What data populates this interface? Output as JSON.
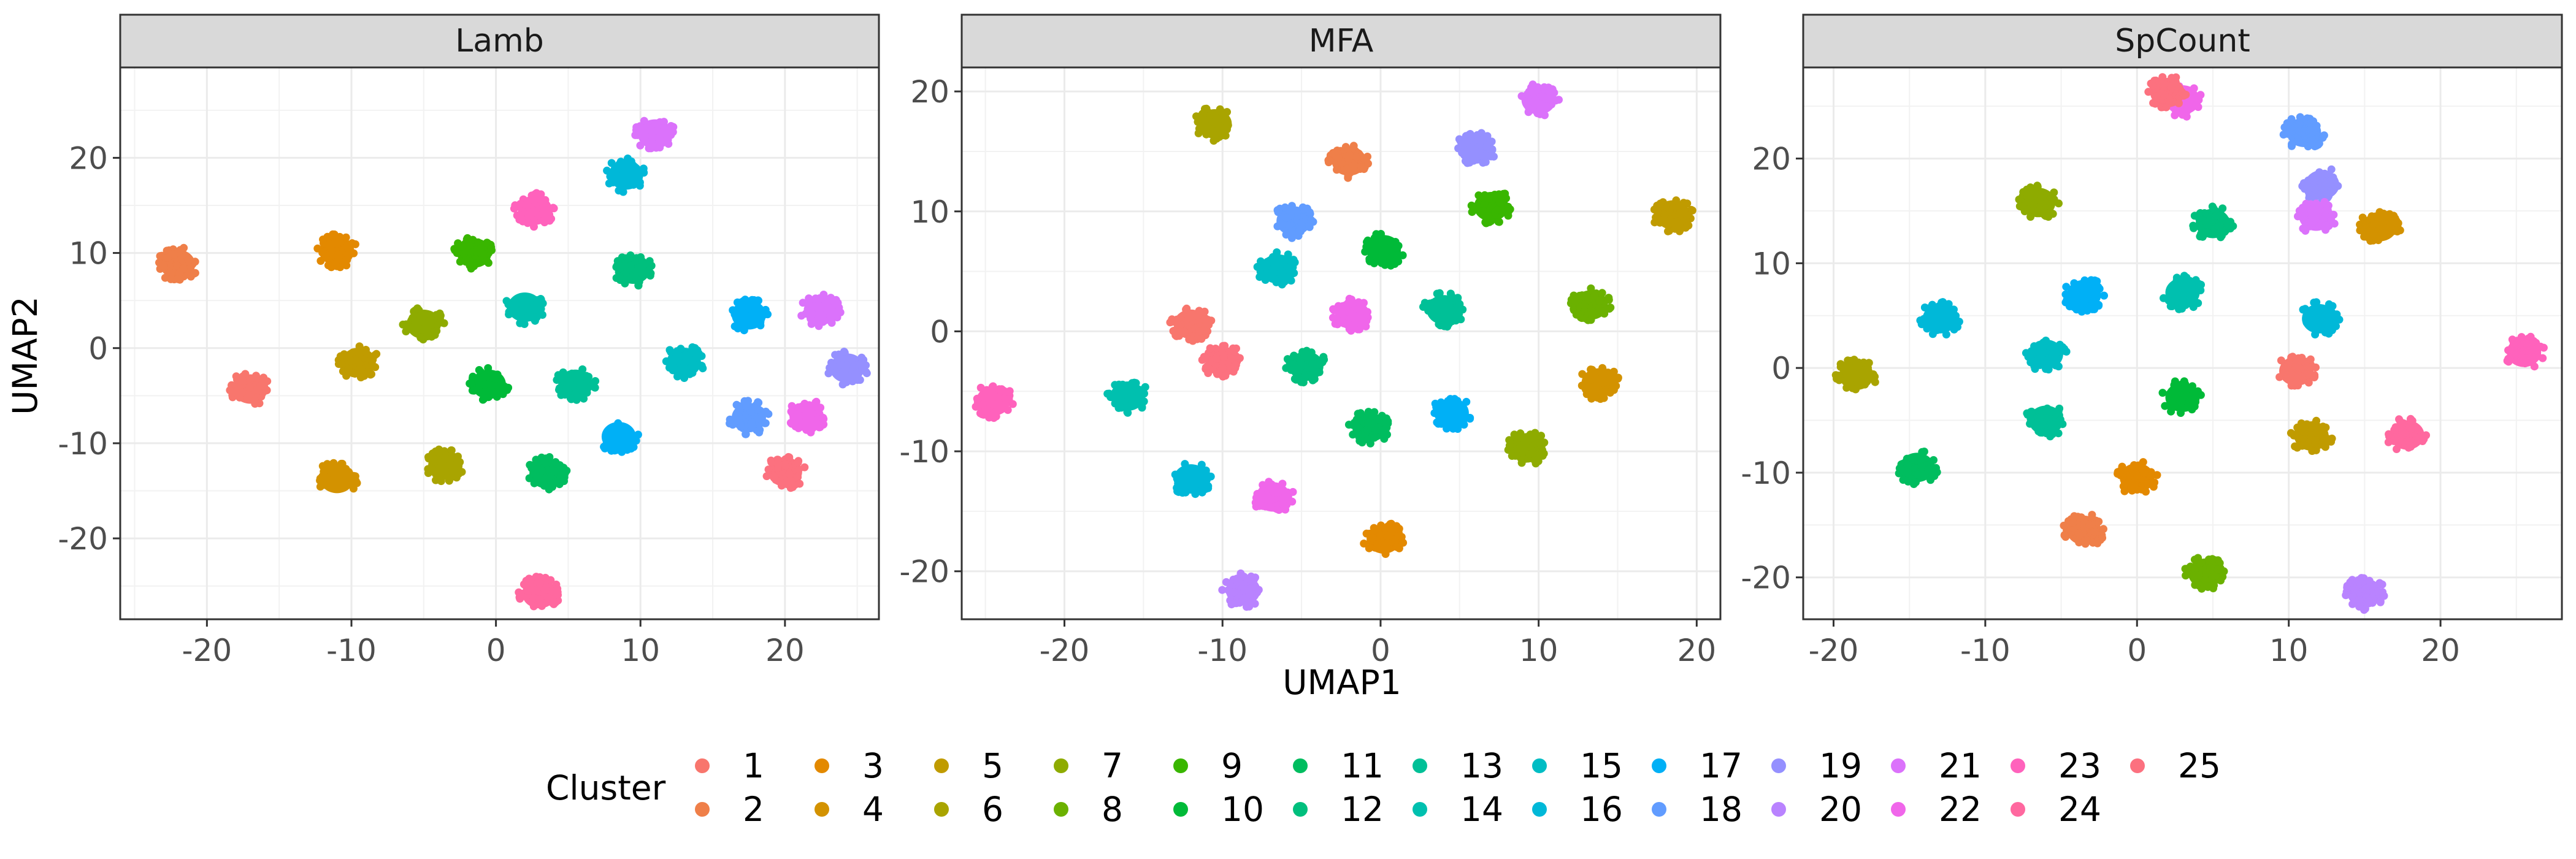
{
  "chart_data": {
    "type": "scatter",
    "x_label": "UMAP1",
    "y_label": "UMAP2",
    "legend": {
      "title": "Cluster",
      "position": "bottom",
      "labels": [
        "1",
        "2",
        "3",
        "4",
        "5",
        "6",
        "7",
        "8",
        "9",
        "10",
        "11",
        "12",
        "13",
        "14",
        "15",
        "16",
        "17",
        "18",
        "19",
        "20",
        "21",
        "22",
        "23",
        "24",
        "25"
      ]
    },
    "colors": [
      "#F8766D",
      "#EF7F49",
      "#E38900",
      "#D39200",
      "#C09B00",
      "#A9A400",
      "#8EAB00",
      "#6BB100",
      "#39B600",
      "#00BA38",
      "#00BD5F",
      "#00BF7D",
      "#00C097",
      "#00C0AF",
      "#00BDC4",
      "#00B8D8",
      "#00B0F6",
      "#619CFF",
      "#9590FF",
      "#B983FF",
      "#DB72FB",
      "#F066EA",
      "#FF62BC",
      "#FF689F",
      "#FC717F"
    ],
    "panels": [
      {
        "title": "Lamb",
        "x_ticks": [
          -20,
          -10,
          0,
          10,
          20
        ],
        "y_ticks": [
          -20,
          -10,
          0,
          10,
          20
        ],
        "xlim": [
          -26,
          26.5
        ],
        "ylim": [
          -28.5,
          29.5
        ],
        "grid": true,
        "clusters": [
          {
            "cluster": 1,
            "x": -17,
            "y": -4.3
          },
          {
            "cluster": 2,
            "x": -22,
            "y": 8.8
          },
          {
            "cluster": 3,
            "x": -11,
            "y": 10.2
          },
          {
            "cluster": 4,
            "x": -11,
            "y": -13.7
          },
          {
            "cluster": 5,
            "x": -9.5,
            "y": -1.5
          },
          {
            "cluster": 6,
            "x": -3.5,
            "y": -12.3
          },
          {
            "cluster": 7,
            "x": -5,
            "y": 2.5
          },
          {
            "cluster": 9,
            "x": -1.5,
            "y": 10
          },
          {
            "cluster": 10,
            "x": -0.5,
            "y": -3.8
          },
          {
            "cluster": 11,
            "x": 3.5,
            "y": -13.2
          },
          {
            "cluster": 12,
            "x": 9.5,
            "y": 8.3
          },
          {
            "cluster": 13,
            "x": 5.5,
            "y": -3.8
          },
          {
            "cluster": 14,
            "x": 2,
            "y": 4.3
          },
          {
            "cluster": 15,
            "x": 13,
            "y": -1.5
          },
          {
            "cluster": 16,
            "x": 9,
            "y": 18.2
          },
          {
            "cluster": 17,
            "x": 17.5,
            "y": 3.5
          },
          {
            "cluster": 17,
            "x": 8.5,
            "y": -9.3
          },
          {
            "cluster": 18,
            "x": 17.5,
            "y": -7.3
          },
          {
            "cluster": 19,
            "x": 24.3,
            "y": -2.1
          },
          {
            "cluster": 21,
            "x": 11,
            "y": 22.5
          },
          {
            "cluster": 21,
            "x": 22.5,
            "y": 4
          },
          {
            "cluster": 22,
            "x": 21.5,
            "y": -7.2
          },
          {
            "cluster": 23,
            "x": 2.7,
            "y": 14.5
          },
          {
            "cluster": 24,
            "x": 3,
            "y": -25.8
          },
          {
            "cluster": 25,
            "x": 20,
            "y": -13
          }
        ]
      },
      {
        "title": "MFA",
        "x_ticks": [
          -20,
          -10,
          0,
          10,
          20
        ],
        "y_ticks": [
          -20,
          -10,
          0,
          10,
          20
        ],
        "xlim": [
          -26.5,
          21.5
        ],
        "ylim": [
          -24,
          22
        ],
        "grid": true,
        "clusters": [
          {
            "cluster": 1,
            "x": -12,
            "y": 0.6
          },
          {
            "cluster": 2,
            "x": -2,
            "y": 14.2
          },
          {
            "cluster": 3,
            "x": 0.2,
            "y": -17.3
          },
          {
            "cluster": 4,
            "x": 13.8,
            "y": -4.3
          },
          {
            "cluster": 5,
            "x": 18.5,
            "y": 9.7
          },
          {
            "cluster": 6,
            "x": -10.5,
            "y": 17.3
          },
          {
            "cluster": 7,
            "x": 9.3,
            "y": -9.7
          },
          {
            "cluster": 8,
            "x": 13.3,
            "y": 2.2
          },
          {
            "cluster": 9,
            "x": 7,
            "y": 10.4
          },
          {
            "cluster": 10,
            "x": 0.2,
            "y": 6.8
          },
          {
            "cluster": 11,
            "x": -0.7,
            "y": -8
          },
          {
            "cluster": 12,
            "x": -4.7,
            "y": -2.9
          },
          {
            "cluster": 13,
            "x": 4,
            "y": 1.8
          },
          {
            "cluster": 14,
            "x": -16,
            "y": -5.4
          },
          {
            "cluster": 15,
            "x": -6.5,
            "y": 5.2
          },
          {
            "cluster": 16,
            "x": -12,
            "y": -12.3
          },
          {
            "cluster": 17,
            "x": 4.5,
            "y": -6.8
          },
          {
            "cluster": 18,
            "x": -5.5,
            "y": 9.2
          },
          {
            "cluster": 19,
            "x": 6,
            "y": 15.2
          },
          {
            "cluster": 20,
            "x": -8.7,
            "y": -21.6
          },
          {
            "cluster": 21,
            "x": 10,
            "y": 19.3
          },
          {
            "cluster": 22,
            "x": -6.8,
            "y": -13.8
          },
          {
            "cluster": 22,
            "x": -1.8,
            "y": 1.4
          },
          {
            "cluster": 23,
            "x": -24.5,
            "y": -5.8
          },
          {
            "cluster": 25,
            "x": -10,
            "y": -2.5
          }
        ]
      },
      {
        "title": "SpCount",
        "x_ticks": [
          -20,
          -10,
          0,
          10,
          20
        ],
        "y_ticks": [
          -20,
          -10,
          0,
          10,
          20
        ],
        "xlim": [
          -22,
          28
        ],
        "ylim": [
          -24,
          28.7
        ],
        "grid": true,
        "clusters": [
          {
            "cluster": 1,
            "x": 10.5,
            "y": -0.3
          },
          {
            "cluster": 2,
            "x": -3.5,
            "y": -15.5
          },
          {
            "cluster": 3,
            "x": 0,
            "y": -10.5
          },
          {
            "cluster": 4,
            "x": 16,
            "y": 13.5
          },
          {
            "cluster": 5,
            "x": 11.5,
            "y": -6.5
          },
          {
            "cluster": 6,
            "x": -18.5,
            "y": -0.7
          },
          {
            "cluster": 7,
            "x": -6.5,
            "y": 15.8
          },
          {
            "cluster": 8,
            "x": 4.5,
            "y": -19.6
          },
          {
            "cluster": 10,
            "x": 3,
            "y": -2.8
          },
          {
            "cluster": 11,
            "x": -14.5,
            "y": -9.5
          },
          {
            "cluster": 12,
            "x": 5,
            "y": 13.8
          },
          {
            "cluster": 13,
            "x": -6,
            "y": -5
          },
          {
            "cluster": 14,
            "x": 3,
            "y": 7.2
          },
          {
            "cluster": 15,
            "x": -6,
            "y": 1.3
          },
          {
            "cluster": 16,
            "x": -13,
            "y": 4.7
          },
          {
            "cluster": 16,
            "x": 12,
            "y": 4.7
          },
          {
            "cluster": 17,
            "x": -3.5,
            "y": 7
          },
          {
            "cluster": 18,
            "x": 11,
            "y": 22.5
          },
          {
            "cluster": 19,
            "x": 12.2,
            "y": 17.5
          },
          {
            "cluster": 20,
            "x": 15,
            "y": -21.5
          },
          {
            "cluster": 21,
            "x": 11.8,
            "y": 14.5
          },
          {
            "cluster": 22,
            "x": 3,
            "y": 25.6
          },
          {
            "cluster": 23,
            "x": 25.5,
            "y": 1.5
          },
          {
            "cluster": 24,
            "x": 17.8,
            "y": -6.4
          },
          {
            "cluster": 25,
            "x": 2,
            "y": 26.3
          }
        ]
      }
    ]
  }
}
